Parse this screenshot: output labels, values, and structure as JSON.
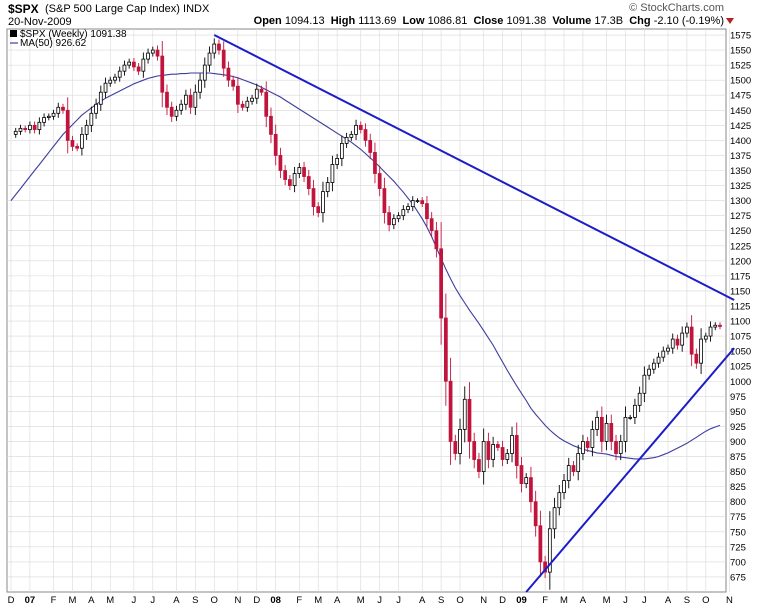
{
  "header": {
    "symbol": "$SPX",
    "name": "(S&P 500 Large Cap Index)",
    "exchange": "INDX",
    "date": "20-Nov-2009",
    "brand": "© StockCharts.com",
    "open_label": "Open",
    "open": "1094.13",
    "high_label": "High",
    "high": "1113.69",
    "low_label": "Low",
    "low": "1086.81",
    "close_label": "Close",
    "close": "1091.38",
    "volume_label": "Volume",
    "volume": "17.3B",
    "chg_label": "Chg",
    "chg": "-2.10 (-0.19%)"
  },
  "legend": {
    "price": "$SPX (Weekly) 1091.38",
    "ma": "MA(50) 926.62"
  },
  "colors": {
    "up": "#000000",
    "down": "#c0143c",
    "trend": "#1c1cc8",
    "ma": "#3d3d9e",
    "grid": "#d8d8d8"
  },
  "chart_data": {
    "type": "candlestick",
    "title": "$SPX (S&P 500 Large Cap Index) INDX",
    "ylim": [
      650,
      1585
    ],
    "yticks": [
      675,
      700,
      725,
      750,
      775,
      800,
      825,
      850,
      875,
      900,
      925,
      950,
      975,
      1000,
      1025,
      1050,
      1075,
      1100,
      1125,
      1150,
      1175,
      1200,
      1225,
      1250,
      1275,
      1300,
      1325,
      1350,
      1375,
      1400,
      1425,
      1450,
      1475,
      1500,
      1525,
      1550,
      1575
    ],
    "xticks": [
      {
        "label": "D",
        "i": 0
      },
      {
        "label": "07",
        "i": 4
      },
      {
        "label": "F",
        "i": 9
      },
      {
        "label": "M",
        "i": 13
      },
      {
        "label": "A",
        "i": 17
      },
      {
        "label": "M",
        "i": 21
      },
      {
        "label": "J",
        "i": 26
      },
      {
        "label": "J",
        "i": 30
      },
      {
        "label": "A",
        "i": 35
      },
      {
        "label": "S",
        "i": 39
      },
      {
        "label": "O",
        "i": 43
      },
      {
        "label": "N",
        "i": 48
      },
      {
        "label": "D",
        "i": 52
      },
      {
        "label": "08",
        "i": 56
      },
      {
        "label": "F",
        "i": 61
      },
      {
        "label": "M",
        "i": 65
      },
      {
        "label": "A",
        "i": 69
      },
      {
        "label": "M",
        "i": 74
      },
      {
        "label": "J",
        "i": 78
      },
      {
        "label": "J",
        "i": 82
      },
      {
        "label": "A",
        "i": 87
      },
      {
        "label": "S",
        "i": 91
      },
      {
        "label": "O",
        "i": 95
      },
      {
        "label": "N",
        "i": 100
      },
      {
        "label": "D",
        "i": 104
      },
      {
        "label": "09",
        "i": 108
      },
      {
        "label": "F",
        "i": 113
      },
      {
        "label": "M",
        "i": 117
      },
      {
        "label": "A",
        "i": 121
      },
      {
        "label": "M",
        "i": 126
      },
      {
        "label": "J",
        "i": 130
      },
      {
        "label": "J",
        "i": 134
      },
      {
        "label": "A",
        "i": 139
      },
      {
        "label": "S",
        "i": 143
      },
      {
        "label": "O",
        "i": 147
      },
      {
        "label": "N",
        "i": 152
      }
    ],
    "series": [
      {
        "name": "$SPX (Weekly)",
        "closes": [
          1410,
          1415,
          1420,
          1418,
          1425,
          1418,
          1430,
          1438,
          1440,
          1445,
          1455,
          1450,
          1400,
          1390,
          1387,
          1410,
          1425,
          1445,
          1460,
          1480,
          1495,
          1500,
          1505,
          1515,
          1525,
          1530,
          1522,
          1515,
          1535,
          1545,
          1550,
          1540,
          1480,
          1455,
          1440,
          1450,
          1460,
          1475,
          1455,
          1480,
          1500,
          1525,
          1545,
          1560,
          1550,
          1520,
          1500,
          1490,
          1460,
          1455,
          1465,
          1470,
          1485,
          1480,
          1440,
          1410,
          1375,
          1350,
          1335,
          1325,
          1345,
          1355,
          1340,
          1320,
          1290,
          1280,
          1315,
          1330,
          1360,
          1370,
          1395,
          1405,
          1410,
          1425,
          1418,
          1400,
          1380,
          1345,
          1320,
          1280,
          1260,
          1270,
          1275,
          1285,
          1290,
          1300,
          1300,
          1295,
          1270,
          1250,
          1220,
          1105,
          1000,
          900,
          880,
          920,
          970,
          900,
          870,
          850,
          900,
          870,
          895,
          890,
          870,
          880,
          910,
          860,
          830,
          840,
          800,
          760,
          700,
          683,
          755,
          790,
          815,
          835,
          860,
          850,
          880,
          900,
          890,
          920,
          940,
          900,
          930,
          900,
          880,
          900,
          940,
          940,
          960,
          980,
          1010,
          1020,
          1030,
          1040,
          1050,
          1055,
          1070,
          1060,
          1080,
          1090,
          1045,
          1030,
          1070,
          1075,
          1090,
          1093,
          1091
        ]
      },
      {
        "name": "MA(50)",
        "values": [
          1300,
          1310,
          1320,
          1330,
          1340,
          1350,
          1360,
          1370,
          1380,
          1390,
          1400,
          1410,
          1418,
          1426,
          1434,
          1442,
          1448,
          1454,
          1460,
          1465,
          1470,
          1474,
          1478,
          1482,
          1486,
          1490,
          1494,
          1497,
          1500,
          1503,
          1505,
          1507,
          1508,
          1509,
          1510,
          1510,
          1511,
          1511,
          1512,
          1512,
          1512,
          1512,
          1512,
          1511,
          1510,
          1509,
          1508,
          1506,
          1504,
          1501,
          1498,
          1495,
          1492,
          1488,
          1484,
          1480,
          1476,
          1472,
          1467,
          1462,
          1457,
          1452,
          1447,
          1442,
          1437,
          1432,
          1427,
          1422,
          1417,
          1412,
          1407,
          1402,
          1397,
          1391,
          1385,
          1378,
          1371,
          1364,
          1356,
          1348,
          1340,
          1332,
          1323,
          1314,
          1304,
          1294,
          1282,
          1270,
          1256,
          1240,
          1222,
          1204,
          1186,
          1170,
          1155,
          1142,
          1130,
          1118,
          1107,
          1096,
          1084,
          1072,
          1060,
          1046,
          1032,
          1018,
          1005,
          992,
          980,
          968,
          955,
          945,
          936,
          927,
          919,
          912,
          906,
          901,
          897,
          893,
          890,
          887,
          885,
          883,
          881,
          880,
          879,
          877,
          875,
          874,
          873,
          872,
          871,
          871,
          871,
          872,
          873,
          875,
          878,
          881,
          885,
          889,
          893,
          897,
          902,
          907,
          912,
          917,
          921,
          924,
          926.62
        ]
      }
    ],
    "trendlines": [
      {
        "name": "resistance",
        "from": {
          "i": 43,
          "y": 1575
        },
        "to": {
          "i": 153,
          "y": 1135
        }
      },
      {
        "name": "support",
        "from": {
          "i": 109,
          "y": 650
        },
        "to": {
          "i": 153,
          "y": 1055
        }
      }
    ]
  }
}
